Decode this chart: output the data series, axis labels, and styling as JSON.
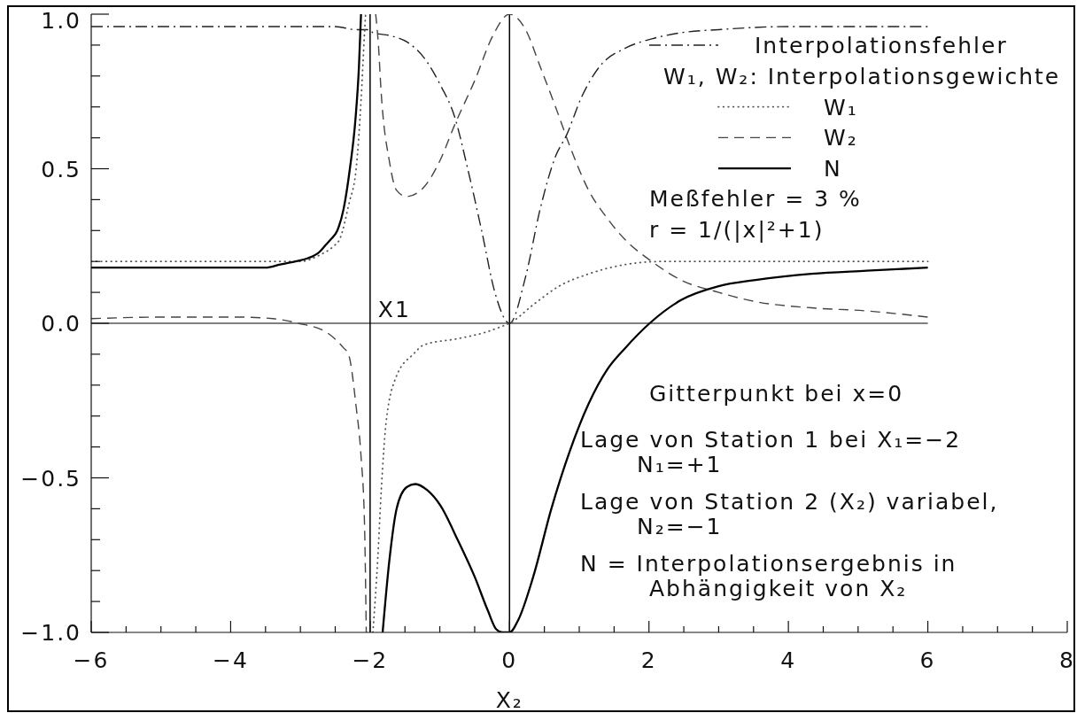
{
  "chart_data": {
    "type": "line",
    "xlabel": "X₂",
    "legend_title": "W₁, W₂: Interpolationsgewichte",
    "legend": "top right",
    "marker": "none",
    "xlim": [
      -6,
      8
    ],
    "ylim": [
      -1,
      1
    ],
    "xticks": [
      {
        "value": -6,
        "label": "−6"
      },
      {
        "value": -5.5,
        "label": null
      },
      {
        "value": -5,
        "label": null
      },
      {
        "value": -4.5,
        "label": null
      },
      {
        "value": -4,
        "label": "−4"
      },
      {
        "value": -3.5,
        "label": null
      },
      {
        "value": -3,
        "label": null
      },
      {
        "value": -2.5,
        "label": null
      },
      {
        "value": -2,
        "label": "−2"
      },
      {
        "value": -1.5,
        "label": null
      },
      {
        "value": -1,
        "label": null
      },
      {
        "value": -0.5,
        "label": null
      },
      0,
      {
        "value": 0.5,
        "label": null
      },
      {
        "value": 1,
        "label": null
      },
      {
        "value": 1.5,
        "label": null
      },
      2,
      {
        "value": 2.5,
        "label": null
      },
      {
        "value": 3,
        "label": null
      },
      {
        "value": 3.5,
        "label": null
      },
      4,
      {
        "value": 4.5,
        "label": null
      },
      {
        "value": 5,
        "label": null
      },
      {
        "value": 5.5,
        "label": null
      },
      6,
      {
        "value": 6.5,
        "label": null
      },
      {
        "value": 7,
        "label": null
      },
      {
        "value": 7.5,
        "label": null
      },
      8
    ],
    "yticks": [
      {
        "value": -1,
        "label": "−1.0"
      },
      {
        "value": -0.9,
        "label": null
      },
      {
        "value": -0.8,
        "label": null
      },
      {
        "value": -0.7,
        "label": null
      },
      {
        "value": -0.6,
        "label": null
      },
      {
        "value": -0.5,
        "label": "−0.5"
      },
      {
        "value": -0.4,
        "label": null
      },
      {
        "value": -0.3,
        "label": null
      },
      {
        "value": -0.2,
        "label": null
      },
      {
        "value": -0.1,
        "label": null
      },
      {
        "value": 0,
        "label": "0.0"
      },
      {
        "value": 0.1,
        "label": null
      },
      {
        "value": 0.2,
        "label": null
      },
      {
        "value": 0.3,
        "label": null
      },
      {
        "value": 0.4,
        "label": null
      },
      0.5,
      {
        "value": 0.6,
        "label": null
      },
      {
        "value": 0.7,
        "label": null
      },
      {
        "value": 0.8,
        "label": null
      },
      {
        "value": 0.9,
        "label": null
      },
      {
        "value": 1,
        "label": "1.0"
      }
    ],
    "series": [
      {
        "name": "Interpolationsfehler",
        "color": "#222222",
        "line_style": "dashdot",
        "x": [
          -6,
          -5,
          -4,
          -3,
          -2.5,
          -2.2,
          -2,
          -1.96,
          -1.7,
          -1.47,
          -1.23,
          -0.99,
          -0.79,
          -0.6,
          -0.4,
          -0.21,
          0,
          0.23,
          0.44,
          0.66,
          0.82,
          1.03,
          1.29,
          1.66,
          2.04,
          2.46,
          3,
          4,
          5,
          6
        ],
        "values": [
          0.96,
          0.96,
          0.96,
          0.96,
          0.96,
          0.95,
          0.95,
          0.94,
          0.93,
          0.91,
          0.86,
          0.77,
          0.67,
          0.5,
          0.3,
          0.1,
          0,
          0.15,
          0.37,
          0.54,
          0.61,
          0.73,
          0.83,
          0.89,
          0.92,
          0.94,
          0.95,
          0.96,
          0.96,
          0.96
        ]
      },
      {
        "name": "W₁",
        "color": "#555555",
        "line_style": "dotted",
        "x": [
          -6,
          -5,
          -4,
          -3,
          -2.73,
          -2.52,
          -2.44,
          -2.3,
          -2.2,
          -2.13,
          -2.08,
          -2.065,
          -2,
          -1.96,
          -1.89,
          -1.84,
          -1.77,
          -1.62,
          -1.38,
          -1.23,
          -0.75,
          -0.36,
          -0.11,
          0,
          0.34,
          0.71,
          1.14,
          1.66,
          2.2,
          3,
          4,
          5,
          6
        ],
        "values": [
          0.2,
          0.2,
          0.2,
          0.2,
          0.22,
          0.25,
          0.27,
          0.39,
          0.5,
          0.72,
          0.94,
          1,
          null,
          -1,
          -0.76,
          -0.54,
          -0.32,
          -0.17,
          -0.1,
          -0.07,
          -0.05,
          -0.03,
          -0.01,
          0,
          0.06,
          0.12,
          0.16,
          0.19,
          0.2,
          0.2,
          0.2,
          0.2,
          0.2
        ]
      },
      {
        "name": "W₂",
        "color": "#444444",
        "line_style": "dashed",
        "x": [
          -6,
          -5,
          -3.87,
          -3.39,
          -3.03,
          -2.62,
          -2.38,
          -2.31,
          -2.2,
          -2.13,
          -2.08,
          -2.055,
          -2,
          -1.92,
          -1.88,
          -1.845,
          -1.72,
          -1.62,
          -1.475,
          -1.23,
          -0.99,
          -0.79,
          -0.49,
          -0.24,
          0,
          0.23,
          0.44,
          0.66,
          0.87,
          1.135,
          1.4,
          1.66,
          2.04,
          2.46,
          3,
          3.53,
          4.33,
          5.12,
          6
        ],
        "values": [
          0.015,
          0.02,
          0.02,
          0.015,
          0,
          -0.03,
          -0.08,
          -0.1,
          -0.27,
          -0.43,
          -0.65,
          -1,
          null,
          1,
          0.9,
          0.76,
          0.52,
          0.43,
          0.41,
          0.44,
          0.53,
          0.64,
          0.79,
          0.93,
          1,
          0.95,
          0.83,
          0.7,
          0.57,
          0.43,
          0.34,
          0.27,
          0.2,
          0.14,
          0.1,
          0.07,
          0.05,
          0.04,
          0.02
        ]
      },
      {
        "name": "N",
        "color": "#000000",
        "line_style": "solid",
        "x": [
          -6,
          -4.77,
          -3.92,
          -3.5,
          -3.29,
          -3.07,
          -2.9,
          -2.73,
          -2.65,
          -2.57,
          -2.47,
          -2.38,
          -2.29,
          -2.21,
          -2.16,
          -2.13,
          -2,
          -1.82,
          -1.72,
          -1.62,
          -1.475,
          -1.35,
          -1.18,
          -0.99,
          -0.745,
          -0.5,
          -0.31,
          -0.19,
          -0.1,
          0,
          0.125,
          0.34,
          0.6,
          0.87,
          1.135,
          1.4,
          1.66,
          2.01,
          2.46,
          3,
          3.53,
          4.33,
          5.12,
          6
        ],
        "values": [
          0.18,
          0.18,
          0.18,
          0.18,
          0.19,
          0.2,
          0.21,
          0.23,
          0.25,
          0.27,
          0.3,
          0.37,
          0.5,
          0.66,
          0.83,
          1,
          null,
          -1,
          -0.76,
          -0.6,
          -0.53,
          -0.52,
          -0.54,
          -0.59,
          -0.7,
          -0.82,
          -0.93,
          -0.99,
          -1,
          -1,
          -0.96,
          -0.82,
          -0.6,
          -0.41,
          -0.26,
          -0.15,
          -0.08,
          0,
          0.075,
          0.12,
          0.14,
          0.16,
          0.17,
          0.18
        ]
      }
    ],
    "ref_lines": [
      {
        "axis": "x",
        "value": -2,
        "color": "#000000"
      },
      {
        "axis": "x",
        "value": 0,
        "color": "#000000"
      },
      {
        "axis": "y",
        "value": 0,
        "color": "#000000"
      }
    ],
    "annotations": [
      {
        "text": "X1",
        "x": -2,
        "y": 0
      },
      "Meßfehler = 3 %",
      "r = 1/(|x|²+1)",
      "Gitterpunkt bei x=0",
      "Lage von Station 1 bei X₁=−2",
      "N₁=+1",
      "Lage von Station 2 (X₂) variabel,",
      "N₂=−1",
      "N = Interpolationsergebnis in",
      "Abhängigkeit von X₂"
    ]
  }
}
